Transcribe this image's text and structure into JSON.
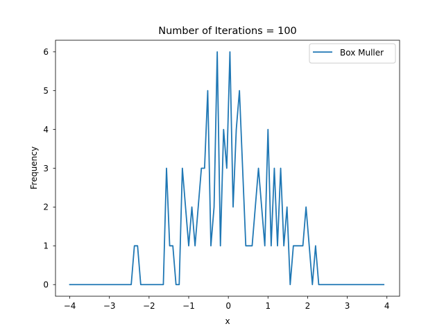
{
  "chart_data": {
    "type": "line",
    "title": "Number of Iterations = 100",
    "xlabel": "x",
    "ylabel": "Frequency",
    "xlim": [
      -4.36,
      4.32
    ],
    "ylim": [
      -0.3,
      6.3
    ],
    "xticks": [
      -4,
      -3,
      -2,
      -1,
      0,
      1,
      2,
      3,
      4
    ],
    "xtick_labels": [
      "−4",
      "−3",
      "−2",
      "−1",
      "0",
      "1",
      "2",
      "3",
      "4"
    ],
    "yticks": [
      0,
      1,
      2,
      3,
      4,
      5,
      6
    ],
    "ytick_labels": [
      "0",
      "1",
      "2",
      "3",
      "4",
      "5",
      "6"
    ],
    "grid": false,
    "legend": "top-right",
    "series": [
      {
        "name": "Box Muller",
        "color": "#1f77b4",
        "x": [
          -4.0,
          -2.45,
          -2.37,
          -2.29,
          -2.21,
          -1.64,
          -1.56,
          -1.48,
          -1.4,
          -1.32,
          -1.24,
          -1.16,
          -1.08,
          -1.0,
          -0.92,
          -0.84,
          -0.76,
          -0.68,
          -0.6,
          -0.52,
          -0.44,
          -0.36,
          -0.28,
          -0.2,
          -0.12,
          -0.04,
          0.04,
          0.12,
          0.2,
          0.28,
          0.36,
          0.44,
          0.52,
          0.6,
          0.68,
          0.76,
          0.84,
          0.92,
          1.0,
          1.08,
          1.16,
          1.24,
          1.32,
          1.4,
          1.48,
          1.56,
          1.64,
          1.72,
          1.8,
          1.88,
          1.96,
          2.04,
          2.12,
          2.2,
          2.28,
          2.36,
          3.92
        ],
        "y": [
          0,
          0,
          1,
          1,
          0,
          0,
          3,
          1,
          1,
          0,
          0,
          3,
          2,
          1,
          2,
          1,
          2,
          3,
          3,
          5,
          1,
          2,
          6,
          1,
          4,
          3,
          6,
          2,
          4,
          5,
          3,
          1,
          1,
          1,
          2,
          3,
          2,
          1,
          4,
          1,
          3,
          1,
          3,
          1,
          2,
          0,
          1,
          1,
          1,
          1,
          2,
          1,
          0,
          1,
          0,
          0,
          0
        ]
      }
    ]
  }
}
